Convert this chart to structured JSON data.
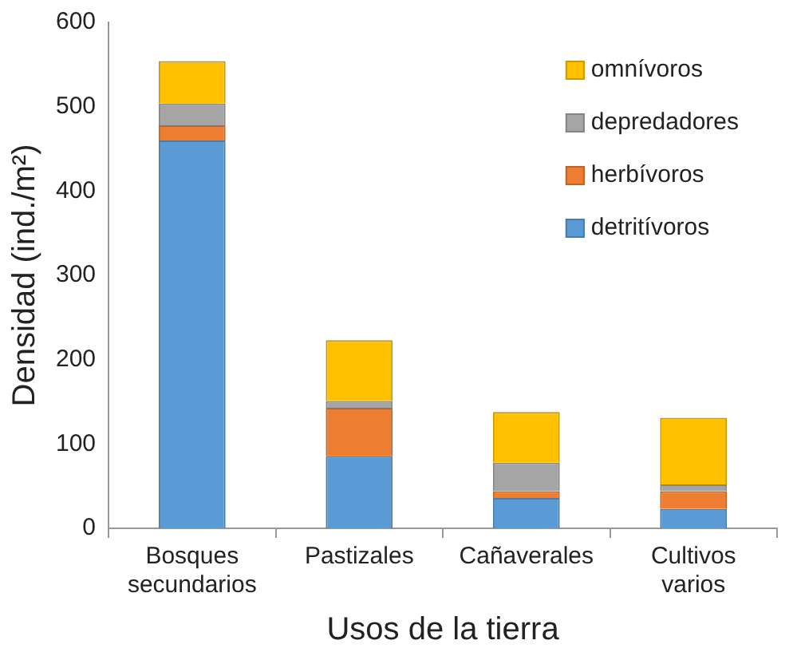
{
  "chart_data": {
    "type": "bar",
    "stacked": true,
    "xlabel": "Usos de la tierra",
    "ylabel": "Densidad (ind./m²)",
    "categories": [
      "Bosques secundarios",
      "Pastizales",
      "Cañaverales",
      "Cultivos varios"
    ],
    "series": [
      {
        "name": "detritívoros",
        "color": "#5b9bd5",
        "values": [
          460,
          86,
          36,
          23
        ]
      },
      {
        "name": "herbívoros",
        "color": "#ed7d31",
        "values": [
          18,
          57,
          8,
          21
        ]
      },
      {
        "name": "depredadores",
        "color": "#a5a5a5",
        "values": [
          26,
          8,
          34,
          8
        ]
      },
      {
        "name": "omnívoros",
        "color": "#ffc000",
        "values": [
          50,
          72,
          60,
          79
        ]
      }
    ],
    "ylim": [
      0,
      600
    ],
    "yticks": [
      0,
      100,
      200,
      300,
      400,
      500,
      600
    ],
    "grid": false,
    "legend": "top right"
  }
}
